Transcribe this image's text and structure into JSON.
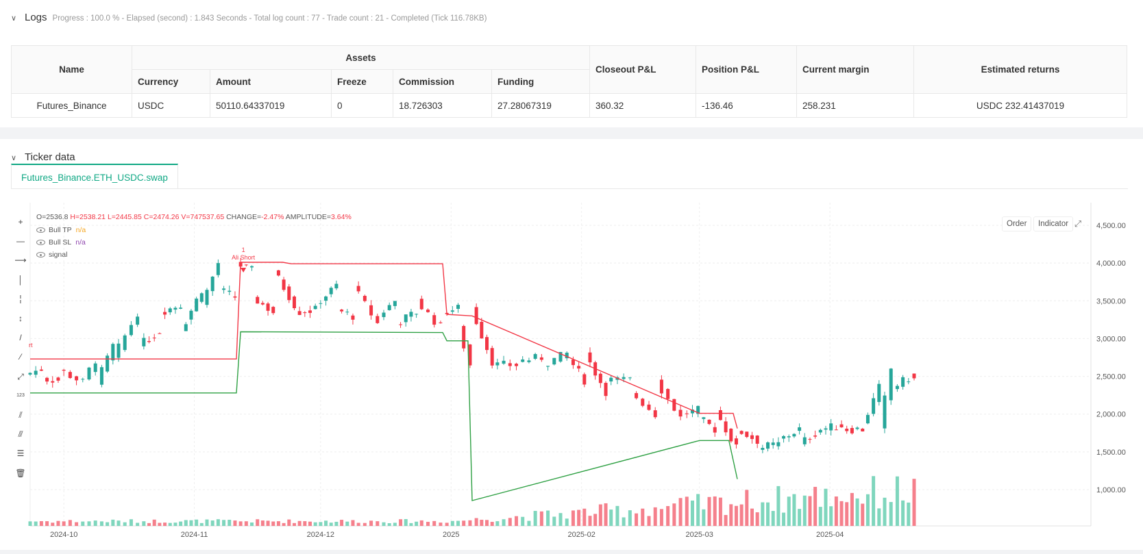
{
  "logs": {
    "title": "Logs",
    "status": "Progress : 100.0 % - Elapsed (second) : 1.843  Seconds - Total log count : 77 - Trade count : 21 - Completed (Tick 116.78KB)"
  },
  "assets_table": {
    "headers": {
      "name": "Name",
      "assets": "Assets",
      "currency": "Currency",
      "amount": "Amount",
      "freeze": "Freeze",
      "commission": "Commission",
      "funding": "Funding",
      "closeout_pnl": "Closeout P&L",
      "position_pnl": "Position P&L",
      "current_margin": "Current margin",
      "estimated_returns": "Estimated returns"
    },
    "row": {
      "name": "Futures_Binance",
      "currency": "USDC",
      "amount": "50110.64337019",
      "freeze": "0",
      "commission": "18.726303",
      "funding": "27.28067319",
      "closeout_pnl": "360.32",
      "position_pnl": "-136.46",
      "current_margin": "258.231",
      "estimated_returns": "USDC 232.41437019"
    }
  },
  "ticker": {
    "title": "Ticker data",
    "tab_label": "Futures_Binance.ETH_USDC.swap",
    "ohlc": {
      "o": "O=2536.8",
      "h": "H=2538.21",
      "l": "L=2445.85",
      "c": "C=2474.26",
      "v": "V=747537.65",
      "change": "CHANGE=-2.47%",
      "amplitude": "AMPLITUDE=3.64%"
    },
    "legend": [
      {
        "name": "Bull TP",
        "value": "n/a"
      },
      {
        "name": "Bull SL",
        "value": "n/a"
      },
      {
        "name": "signal",
        "value": ""
      }
    ],
    "buttons": {
      "order": "Order",
      "indicator": "Indicator"
    },
    "annotations": {
      "left_cut": "rt",
      "trade_num": "1",
      "trade_label": "Ali Short"
    },
    "colors": {
      "up": "#26a69a",
      "down": "#f23645",
      "tp_line": "#f23645",
      "sl_line": "#2ea043",
      "accent": "#0fa884"
    }
  },
  "chart_data": {
    "type": "candlestick",
    "title": "",
    "xlabel": "",
    "ylabel": "",
    "ylim": [
      520,
      4600
    ],
    "y_ticks": [
      "4,500.00",
      "4,000.00",
      "3,500.00",
      "3,000.00",
      "2,500.00",
      "2,000.00",
      "1,500.00",
      "1,000.00"
    ],
    "y_tick_values": [
      4500,
      4000,
      3500,
      3000,
      2500,
      2000,
      1500,
      1000
    ],
    "x_ticks": [
      "2024-10",
      "2024-11",
      "2024-12",
      "2025",
      "2025-02",
      "2025-03",
      "2025-04"
    ],
    "x_tick_dates": [
      "2024-10-01",
      "2024-11-01",
      "2024-12-01",
      "2025-01-01",
      "2025-02-01",
      "2025-03-01",
      "2025-04-01"
    ],
    "x_range": [
      "2024-09-23",
      "2025-06-02"
    ],
    "bull_tp_line": [
      {
        "date": "2024-09-23",
        "value": 2730
      },
      {
        "date": "2024-11-11",
        "value": 2730
      },
      {
        "date": "2024-11-12",
        "value": 4010
      },
      {
        "date": "2024-11-22",
        "value": 4010
      },
      {
        "date": "2024-11-24",
        "value": 3990
      },
      {
        "date": "2024-12-30",
        "value": 3990
      },
      {
        "date": "2024-12-31",
        "value": 3320
      },
      {
        "date": "2025-01-06",
        "value": 3300
      },
      {
        "date": "2025-03-01",
        "value": 2010
      },
      {
        "date": "2025-03-09",
        "value": 2010
      },
      {
        "date": "2025-03-10",
        "value": 1810
      }
    ],
    "bull_sl_line": [
      {
        "date": "2024-09-23",
        "value": 2280
      },
      {
        "date": "2024-11-11",
        "value": 2280
      },
      {
        "date": "2024-11-12",
        "value": 3090
      },
      {
        "date": "2024-12-30",
        "value": 3080
      },
      {
        "date": "2024-12-31",
        "value": 2970
      },
      {
        "date": "2025-01-05",
        "value": 2970
      },
      {
        "date": "2025-01-06",
        "value": 855
      },
      {
        "date": "2025-03-01",
        "value": 1650
      },
      {
        "date": "2025-03-08",
        "value": 1650
      },
      {
        "date": "2025-03-10",
        "value": 1140
      }
    ],
    "candles_weekly_approx": [
      {
        "date": "2024-09-23",
        "open": 2520,
        "close": 2480
      },
      {
        "date": "2024-09-27",
        "open": 2470,
        "close": 2600
      },
      {
        "date": "2024-10-01",
        "open": 2600,
        "close": 2450
      },
      {
        "date": "2024-10-07",
        "open": 2450,
        "close": 2420
      },
      {
        "date": "2024-10-10",
        "open": 2400,
        "close": 2720
      },
      {
        "date": "2024-10-14",
        "open": 2720,
        "close": 2900
      },
      {
        "date": "2024-10-20",
        "open": 2900,
        "close": 3350
      },
      {
        "date": "2024-10-25",
        "open": 3350,
        "close": 3100
      },
      {
        "date": "2024-10-30",
        "open": 3100,
        "close": 3450
      },
      {
        "date": "2024-11-04",
        "open": 3450,
        "close": 3650
      },
      {
        "date": "2024-11-08",
        "open": 3650,
        "close": 4000
      },
      {
        "date": "2024-11-12",
        "open": 4000,
        "close": 3550
      },
      {
        "date": "2024-11-16",
        "open": 3550,
        "close": 3900
      },
      {
        "date": "2024-11-21",
        "open": 3900,
        "close": 3350
      },
      {
        "date": "2024-11-26",
        "open": 3350,
        "close": 3450
      },
      {
        "date": "2024-12-01",
        "open": 3450,
        "close": 3380
      },
      {
        "date": "2024-12-06",
        "open": 3380,
        "close": 3700
      },
      {
        "date": "2024-12-10",
        "open": 3700,
        "close": 3300
      },
      {
        "date": "2024-12-16",
        "open": 3300,
        "close": 3200
      },
      {
        "date": "2024-12-20",
        "open": 3200,
        "close": 3500
      },
      {
        "date": "2024-12-25",
        "open": 3500,
        "close": 3350
      },
      {
        "date": "2024-12-31",
        "open": 3350,
        "close": 3150
      },
      {
        "date": "2025-01-04",
        "open": 3150,
        "close": 3400
      },
      {
        "date": "2025-01-07",
        "open": 3400,
        "close": 2650
      },
      {
        "date": "2025-01-12",
        "open": 2650,
        "close": 2700
      },
      {
        "date": "2025-01-18",
        "open": 2700,
        "close": 2650
      },
      {
        "date": "2025-01-24",
        "open": 2650,
        "close": 2750
      },
      {
        "date": "2025-01-30",
        "open": 2750,
        "close": 2800
      },
      {
        "date": "2025-02-03",
        "open": 2800,
        "close": 2450
      },
      {
        "date": "2025-02-08",
        "open": 2450,
        "close": 2300
      },
      {
        "date": "2025-02-14",
        "open": 2300,
        "close": 2450
      },
      {
        "date": "2025-02-20",
        "open": 2450,
        "close": 2000
      },
      {
        "date": "2025-02-26",
        "open": 2000,
        "close": 1950
      },
      {
        "date": "2025-03-02",
        "open": 1950,
        "close": 2050
      },
      {
        "date": "2025-03-06",
        "open": 2050,
        "close": 1800
      },
      {
        "date": "2025-03-11",
        "open": 1800,
        "close": 1550
      },
      {
        "date": "2025-03-16",
        "open": 1550,
        "close": 1650
      },
      {
        "date": "2025-03-21",
        "open": 1650,
        "close": 1600
      },
      {
        "date": "2025-03-26",
        "open": 1600,
        "close": 1800
      },
      {
        "date": "2025-03-31",
        "open": 1800,
        "close": 1800
      },
      {
        "date": "2025-04-05",
        "open": 1800,
        "close": 1850
      },
      {
        "date": "2025-04-10",
        "open": 1850,
        "close": 1800
      },
      {
        "date": "2025-04-14",
        "open": 1800,
        "close": 2350
      },
      {
        "date": "2025-04-17",
        "open": 2350,
        "close": 2600
      },
      {
        "date": "2025-04-21",
        "open": 2600,
        "close": 2474
      }
    ]
  }
}
